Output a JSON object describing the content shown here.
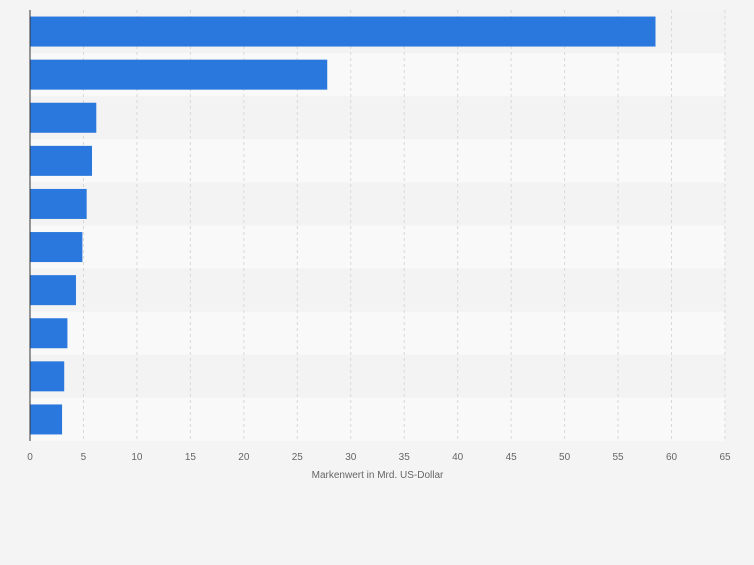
{
  "chart_data": {
    "type": "bar",
    "orientation": "horizontal",
    "title": "",
    "xlabel": "Markenwert in Mrd. US-Dollar",
    "ylabel": "",
    "categories": [
      "",
      "",
      "",
      "",
      "",
      "",
      "",
      "",
      "",
      ""
    ],
    "values": [
      58.5,
      27.8,
      6.2,
      5.8,
      5.3,
      4.9,
      4.3,
      3.5,
      3.2,
      3.0
    ],
    "xlim": [
      0,
      65
    ],
    "xticks": [
      0,
      5,
      10,
      15,
      20,
      25,
      30,
      35,
      40,
      45,
      50,
      55,
      60,
      65
    ],
    "grid": "vertical-dashed",
    "legend": "none",
    "colors": {
      "bar": "#2a78dd",
      "page_background": "#f4f4f4",
      "band_dark": "#f3f3f3",
      "band_light": "#f9f9f9",
      "grid": "#d8d8d8",
      "axis": "#333333",
      "text": "#666666"
    }
  }
}
